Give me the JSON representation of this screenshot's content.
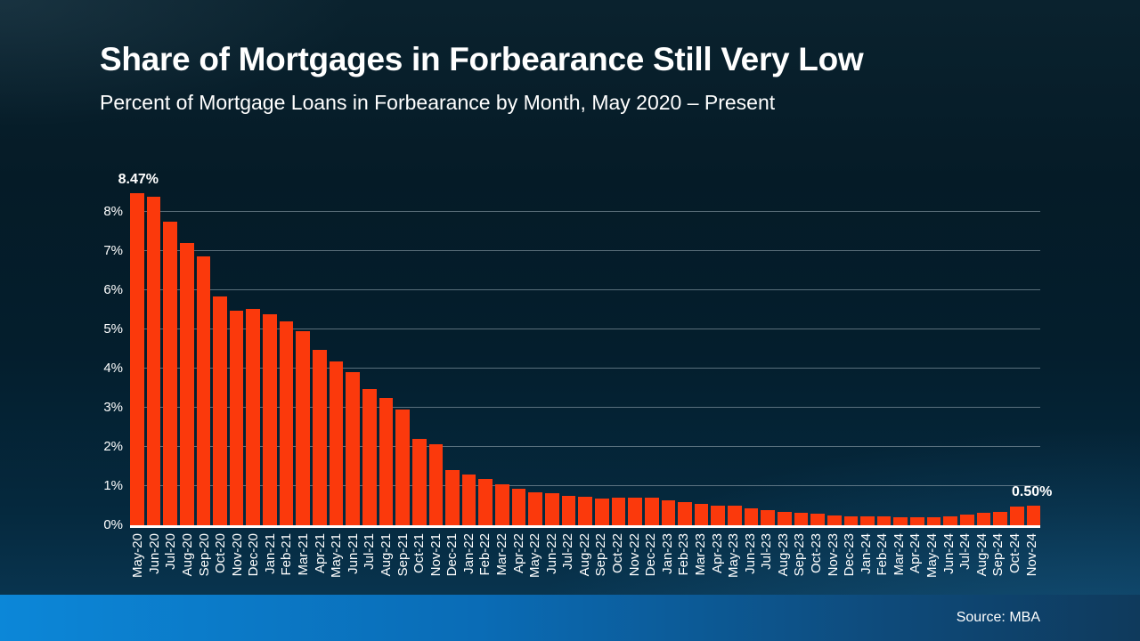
{
  "header": {
    "title": "Share of Mortgages in Forbearance Still Very Low",
    "subtitle": "Percent of Mortgage Loans in Forbearance by Month, May 2020 – Present"
  },
  "footer": {
    "source": "Source: MBA"
  },
  "colors": {
    "bar": "#fb390c",
    "background_top": "#051b27",
    "background_bottom": "#0a3a58",
    "footer_left": "#0c87d8",
    "footer_right": "#0f3a5c",
    "gridline": "rgba(163,178,188,0.55)",
    "axis_line": "#ffffff",
    "text": "#ffffff"
  },
  "chart_data": {
    "type": "bar",
    "title": "Share of Mortgages in Forbearance Still Very Low",
    "subtitle": "Percent of Mortgage Loans in Forbearance by Month, May 2020 – Present",
    "xlabel": "",
    "ylabel": "",
    "ylim": [
      0,
      9.5
    ],
    "yticks": [
      0,
      1,
      2,
      3,
      4,
      5,
      6,
      7,
      8
    ],
    "ytick_suffix": "%",
    "grid": true,
    "legend": false,
    "categories": [
      "May-20",
      "Jun-20",
      "Jul-20",
      "Aug-20",
      "Sep-20",
      "Oct-20",
      "Nov-20",
      "Dec-20",
      "Jan-21",
      "Feb-21",
      "Mar-21",
      "Apr-21",
      "May-21",
      "Jun-21",
      "Jul-21",
      "Aug-21",
      "Sep-21",
      "Oct-21",
      "Nov-21",
      "Dec-21",
      "Jan-22",
      "Feb-22",
      "Mar-22",
      "Apr-22",
      "May-22",
      "Jun-22",
      "Jul-22",
      "Aug-22",
      "Sep-22",
      "Oct-22",
      "Nov-22",
      "Dec-22",
      "Jan-23",
      "Feb-23",
      "Mar-23",
      "Apr-23",
      "May-23",
      "Jun-23",
      "Jul-23",
      "Aug-23",
      "Sep-23",
      "Oct-23",
      "Nov-23",
      "Dec-23",
      "Jan-24",
      "Feb-24",
      "Mar-24",
      "Apr-24",
      "May-24",
      "Jun-24",
      "Jul-24",
      "Aug-24",
      "Sep-24",
      "Oct-24",
      "Nov-24"
    ],
    "values": [
      8.47,
      8.39,
      7.74,
      7.2,
      6.87,
      5.83,
      5.48,
      5.53,
      5.38,
      5.2,
      4.96,
      4.47,
      4.18,
      3.91,
      3.48,
      3.25,
      2.96,
      2.21,
      2.06,
      1.41,
      1.3,
      1.18,
      1.05,
      0.94,
      0.85,
      0.81,
      0.74,
      0.72,
      0.69,
      0.7,
      0.7,
      0.7,
      0.64,
      0.6,
      0.55,
      0.51,
      0.49,
      0.44,
      0.39,
      0.33,
      0.31,
      0.29,
      0.26,
      0.23,
      0.22,
      0.22,
      0.2,
      0.21,
      0.21,
      0.23,
      0.27,
      0.31,
      0.34,
      0.47,
      0.5
    ],
    "annotations": [
      {
        "index": 0,
        "text": "8.47%"
      },
      {
        "index": 54,
        "text": "0.50%"
      }
    ]
  }
}
